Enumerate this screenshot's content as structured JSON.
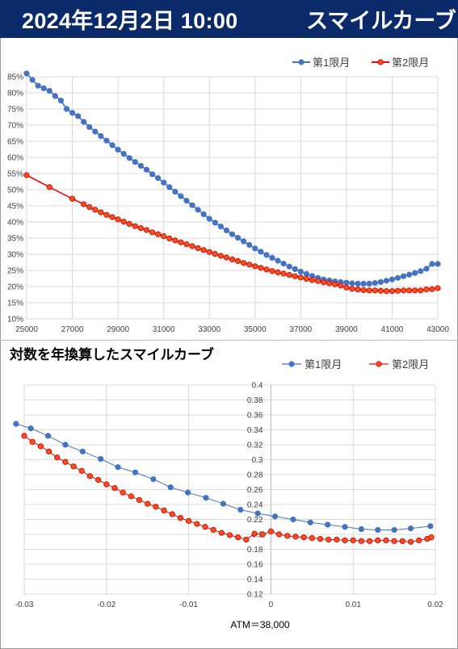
{
  "header": {
    "datetime": "2024年12月2日 10:00",
    "title": "スマイルカーブ"
  },
  "chart_data": [
    {
      "type": "line",
      "title": "",
      "xlabel": "",
      "ylabel": "",
      "xlim": [
        25000,
        43000
      ],
      "ylim": [
        0.1,
        0.85
      ],
      "x_ticks": [
        "25000",
        "27000",
        "29000",
        "31000",
        "33000",
        "35000",
        "37000",
        "39000",
        "41000",
        "43000"
      ],
      "y_ticks": [
        "85%",
        "80%",
        "75%",
        "70%",
        "65%",
        "60%",
        "55%",
        "50%",
        "45%",
        "40%",
        "35%",
        "30%",
        "25%",
        "20%",
        "15%",
        "10%"
      ],
      "grid": "on",
      "legend": "top-right",
      "colors": {
        "first": "#4472c4",
        "second": "#ff0000",
        "second_marker_fill": "#ff4d1a"
      },
      "series": [
        {
          "name": "第1限月",
          "x": [
            25000,
            25250,
            25500,
            25750,
            26000,
            26250,
            26500,
            26750,
            27000,
            27250,
            27500,
            27750,
            28000,
            28250,
            28500,
            28750,
            29000,
            29250,
            29500,
            29750,
            30000,
            30250,
            30500,
            30750,
            31000,
            31250,
            31500,
            31750,
            32000,
            32250,
            32500,
            32750,
            33000,
            33250,
            33500,
            33750,
            34000,
            34250,
            34500,
            34750,
            35000,
            35250,
            35500,
            35750,
            36000,
            36250,
            36500,
            36750,
            37000,
            37250,
            37500,
            37750,
            38000,
            38250,
            38500,
            38750,
            39000,
            39250,
            39500,
            39750,
            40000,
            40250,
            40500,
            40750,
            41000,
            41250,
            41500,
            41750,
            42000,
            42250,
            42500,
            42750,
            43000
          ],
          "y": [
            0.86,
            0.84,
            0.822,
            0.814,
            0.806,
            0.79,
            0.776,
            0.75,
            0.738,
            0.728,
            0.71,
            0.694,
            0.68,
            0.666,
            0.652,
            0.638,
            0.624,
            0.611,
            0.598,
            0.586,
            0.574,
            0.562,
            0.548,
            0.536,
            0.522,
            0.508,
            0.494,
            0.48,
            0.466,
            0.452,
            0.438,
            0.424,
            0.41,
            0.398,
            0.386,
            0.374,
            0.362,
            0.351,
            0.34,
            0.329,
            0.318,
            0.308,
            0.298,
            0.289,
            0.28,
            0.271,
            0.262,
            0.254,
            0.246,
            0.239,
            0.233,
            0.227,
            0.222,
            0.219,
            0.216,
            0.214,
            0.212,
            0.21,
            0.209,
            0.209,
            0.209,
            0.211,
            0.214,
            0.218,
            0.222,
            0.227,
            0.232,
            0.237,
            0.242,
            0.248,
            0.255,
            0.27,
            0.27
          ]
        },
        {
          "name": "第2限月",
          "x": [
            25000,
            26000,
            27000,
            27500,
            27750,
            28000,
            28250,
            28500,
            28750,
            29000,
            29250,
            29500,
            29750,
            30000,
            30250,
            30500,
            30750,
            31000,
            31250,
            31500,
            31750,
            32000,
            32250,
            32500,
            32750,
            33000,
            33250,
            33500,
            33750,
            34000,
            34250,
            34500,
            34750,
            35000,
            35250,
            35500,
            35750,
            36000,
            36250,
            36500,
            36750,
            37000,
            37250,
            37500,
            37750,
            38000,
            38250,
            38500,
            38750,
            39000,
            39250,
            39500,
            39750,
            40000,
            40250,
            40500,
            40750,
            41000,
            41250,
            41500,
            41750,
            42000,
            42250,
            42500,
            42750,
            43000
          ],
          "y": [
            0.545,
            0.508,
            0.472,
            0.455,
            0.446,
            0.438,
            0.43,
            0.422,
            0.415,
            0.408,
            0.401,
            0.394,
            0.387,
            0.381,
            0.375,
            0.368,
            0.362,
            0.356,
            0.349,
            0.343,
            0.337,
            0.331,
            0.325,
            0.319,
            0.313,
            0.307,
            0.301,
            0.295,
            0.29,
            0.284,
            0.279,
            0.273,
            0.268,
            0.263,
            0.258,
            0.253,
            0.248,
            0.244,
            0.24,
            0.236,
            0.232,
            0.228,
            0.224,
            0.22,
            0.217,
            0.213,
            0.21,
            0.207,
            0.203,
            0.197,
            0.193,
            0.191,
            0.189,
            0.188,
            0.188,
            0.187,
            0.186,
            0.186,
            0.187,
            0.188,
            0.188,
            0.188,
            0.188,
            0.191,
            0.192,
            0.195
          ]
        }
      ]
    },
    {
      "type": "scatter",
      "title": "対数を年換算したスマイルカーブ",
      "xlabel": "ATM＝38,000",
      "ylabel": "",
      "xlim": [
        -0.03,
        0.02
      ],
      "ylim": [
        0.12,
        0.4
      ],
      "x_ticks": [
        "-0.03",
        "-0.02",
        "-0.01",
        "0",
        "0.01",
        "0.02"
      ],
      "y_ticks": [
        "0.4",
        "0.38",
        "0.36",
        "0.34",
        "0.32",
        "0.3",
        "0.28",
        "0.26",
        "0.24",
        "0.22",
        "0.2",
        "0.18",
        "0.16",
        "0.14",
        "0.12"
      ],
      "grid": "on",
      "legend": "top-right",
      "colors": {
        "first": "#4472c4",
        "second": "#ff0000",
        "second_marker_fill": "#ff4d1a"
      },
      "series": [
        {
          "name": "第1限月",
          "x": [
            -0.031,
            -0.0292,
            -0.0271,
            -0.025,
            -0.0229,
            -0.0207,
            -0.0186,
            -0.0165,
            -0.0143,
            -0.0122,
            -0.0101,
            -0.0079,
            -0.0058,
            -0.0037,
            -0.0016,
            0.0005,
            0.0027,
            0.0048,
            0.0069,
            0.009,
            0.011,
            0.013,
            0.015,
            0.017,
            0.0194
          ],
          "y": [
            0.348,
            0.342,
            0.332,
            0.32,
            0.311,
            0.301,
            0.29,
            0.283,
            0.274,
            0.263,
            0.256,
            0.249,
            0.241,
            0.233,
            0.228,
            0.224,
            0.22,
            0.216,
            0.213,
            0.21,
            0.207,
            0.206,
            0.206,
            0.208,
            0.211
          ]
        },
        {
          "name": "第2限月",
          "x": [
            -0.03,
            -0.029,
            -0.028,
            -0.027,
            -0.026,
            -0.025,
            -0.024,
            -0.023,
            -0.022,
            -0.021,
            -0.02,
            -0.019,
            -0.018,
            -0.017,
            -0.016,
            -0.015,
            -0.014,
            -0.013,
            -0.012,
            -0.011,
            -0.01,
            -0.009,
            -0.008,
            -0.007,
            -0.006,
            -0.005,
            -0.004,
            -0.003,
            -0.002,
            -0.001,
            0.0,
            0.001,
            0.002,
            0.003,
            0.004,
            0.005,
            0.006,
            0.007,
            0.008,
            0.009,
            0.01,
            0.011,
            0.012,
            0.013,
            0.014,
            0.015,
            0.016,
            0.017,
            0.018,
            0.019,
            0.0195
          ],
          "y": [
            0.332,
            0.324,
            0.318,
            0.311,
            0.303,
            0.297,
            0.291,
            0.285,
            0.278,
            0.273,
            0.267,
            0.262,
            0.256,
            0.251,
            0.246,
            0.241,
            0.237,
            0.232,
            0.227,
            0.222,
            0.218,
            0.214,
            0.21,
            0.206,
            0.202,
            0.199,
            0.196,
            0.193,
            0.201,
            0.2,
            0.204,
            0.2,
            0.198,
            0.197,
            0.196,
            0.195,
            0.194,
            0.193,
            0.193,
            0.192,
            0.192,
            0.191,
            0.191,
            0.192,
            0.192,
            0.191,
            0.191,
            0.19,
            0.192,
            0.194,
            0.196
          ]
        }
      ]
    }
  ]
}
